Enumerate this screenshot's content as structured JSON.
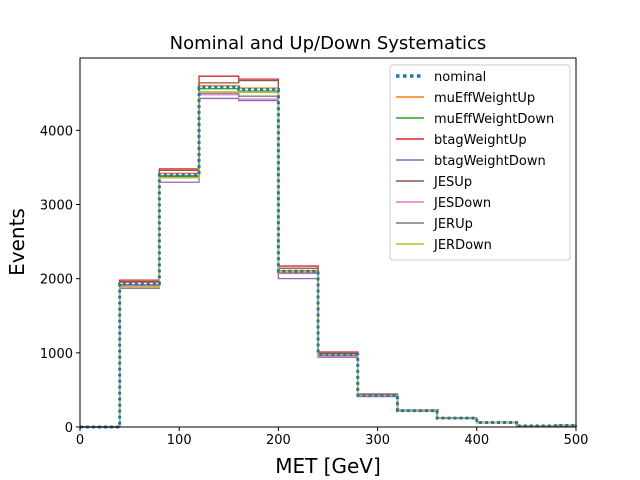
{
  "chart_data": {
    "type": "step-histogram",
    "title": "Nominal and Up/Down Systematics",
    "xlabel": "MET [GeV]",
    "ylabel": "Events",
    "xlim": [
      0,
      500
    ],
    "ylim": [
      0,
      5000
    ],
    "xticks": [
      0,
      100,
      200,
      300,
      400,
      500
    ],
    "yticks": [
      0,
      1000,
      2000,
      3000,
      4000
    ],
    "grid": false,
    "legend_position": "top-right",
    "bin_edges": [
      0,
      40,
      80,
      120,
      160,
      200,
      240,
      280,
      320,
      360,
      400,
      440,
      480,
      500
    ],
    "series": [
      {
        "name": "nominal",
        "color": "#1f77b4",
        "style": "dotted",
        "values": [
          0,
          1930,
          3400,
          4580,
          4550,
          2100,
          980,
          430,
          220,
          120,
          60,
          15,
          20
        ]
      },
      {
        "name": "muEffWeightUp",
        "color": "#ff7f0e",
        "style": "solid",
        "values": [
          0,
          1950,
          3420,
          4600,
          4570,
          2110,
          985,
          432,
          221,
          121,
          61,
          15,
          20
        ]
      },
      {
        "name": "muEffWeightDown",
        "color": "#2ca02c",
        "style": "solid",
        "values": [
          0,
          1910,
          3380,
          4560,
          4530,
          2090,
          975,
          428,
          219,
          119,
          59,
          14,
          19
        ]
      },
      {
        "name": "btagWeightUp",
        "color": "#d62728",
        "style": "solid",
        "values": [
          0,
          1980,
          3480,
          4730,
          4690,
          2170,
          1010,
          445,
          228,
          124,
          62,
          16,
          21
        ]
      },
      {
        "name": "btagWeightDown",
        "color": "#9467bd",
        "style": "solid",
        "values": [
          0,
          1870,
          3300,
          4430,
          4400,
          2000,
          940,
          410,
          212,
          115,
          57,
          14,
          19
        ]
      },
      {
        "name": "JESUp",
        "color": "#8c564b",
        "style": "solid",
        "values": [
          0,
          1960,
          3460,
          4640,
          4670,
          2140,
          990,
          440,
          225,
          123,
          61,
          15,
          21
        ]
      },
      {
        "name": "JESDown",
        "color": "#e377c2",
        "style": "solid",
        "values": [
          0,
          1900,
          3360,
          4480,
          4420,
          2070,
          960,
          420,
          216,
          117,
          58,
          14,
          19
        ]
      },
      {
        "name": "JERUp",
        "color": "#7f7f7f",
        "style": "solid",
        "values": [
          0,
          1920,
          3390,
          4500,
          4460,
          2080,
          970,
          425,
          218,
          118,
          59,
          14,
          19
        ]
      },
      {
        "name": "JERDown",
        "color": "#bcbd22",
        "style": "solid",
        "values": [
          0,
          1880,
          3360,
          4520,
          4510,
          2090,
          975,
          427,
          219,
          119,
          60,
          15,
          20
        ]
      }
    ]
  }
}
